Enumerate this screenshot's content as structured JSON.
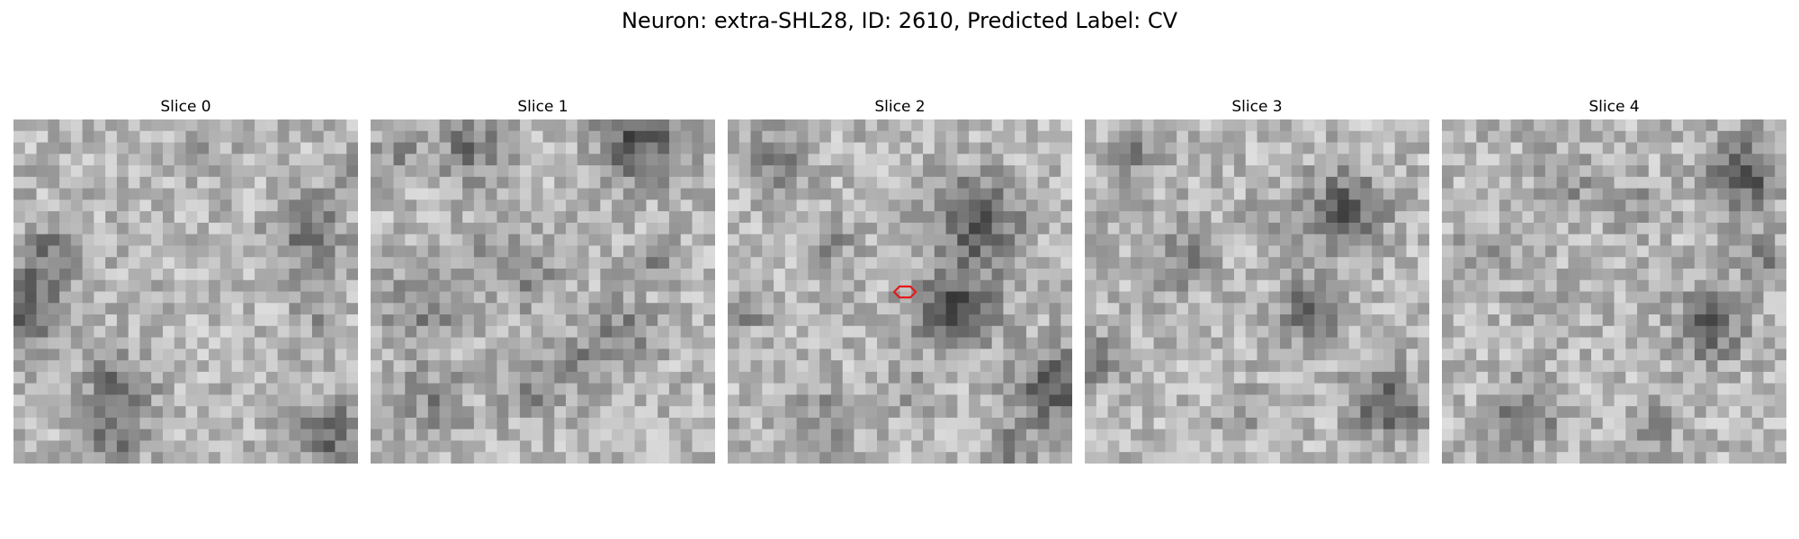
{
  "figure": {
    "title": "Neuron: extra-SHL28, ID: 2610, Predicted Label: CV"
  },
  "panels": [
    {
      "title": "Slice 0",
      "seed": 11,
      "blobs": [
        [
          0.03,
          0.55,
          0.09,
          0.35
        ],
        [
          0.12,
          0.38,
          0.06,
          0.22
        ],
        [
          0.85,
          0.32,
          0.07,
          0.3
        ],
        [
          0.3,
          0.78,
          0.07,
          0.28
        ],
        [
          0.28,
          0.93,
          0.06,
          0.25
        ],
        [
          0.93,
          0.92,
          0.07,
          0.3
        ],
        [
          0.99,
          0.15,
          0.03,
          0.3
        ],
        [
          0.88,
          0.55,
          0.05,
          0.14
        ],
        [
          0.55,
          0.1,
          0.06,
          0.08
        ]
      ]
    },
    {
      "title": "Slice 1",
      "seed": 23,
      "blobs": [
        [
          0.78,
          0.06,
          0.08,
          0.4
        ],
        [
          0.29,
          0.08,
          0.07,
          0.25
        ],
        [
          0.14,
          0.55,
          0.08,
          0.2
        ],
        [
          0.45,
          0.45,
          0.06,
          0.2
        ],
        [
          0.72,
          0.62,
          0.07,
          0.2
        ],
        [
          0.58,
          0.72,
          0.06,
          0.18
        ],
        [
          0.45,
          0.78,
          0.05,
          0.22
        ],
        [
          0.18,
          0.82,
          0.07,
          0.18
        ],
        [
          0.82,
          0.4,
          0.04,
          0.18
        ],
        [
          0.08,
          0.1,
          0.05,
          0.15
        ],
        [
          0.35,
          0.35,
          0.05,
          0.12
        ]
      ]
    },
    {
      "title": "Slice 2",
      "seed": 37,
      "blobs": [
        [
          0.72,
          0.3,
          0.09,
          0.35
        ],
        [
          0.66,
          0.55,
          0.08,
          0.4
        ],
        [
          0.95,
          0.78,
          0.08,
          0.38
        ],
        [
          0.05,
          0.55,
          0.04,
          0.25
        ],
        [
          0.3,
          0.35,
          0.05,
          0.18
        ],
        [
          0.15,
          0.12,
          0.06,
          0.2
        ],
        [
          0.28,
          0.88,
          0.06,
          0.18
        ],
        [
          0.82,
          0.95,
          0.05,
          0.2
        ],
        [
          0.52,
          0.78,
          0.05,
          0.12
        ]
      ]
    },
    {
      "title": "Slice 3",
      "seed": 51,
      "blobs": [
        [
          0.75,
          0.27,
          0.08,
          0.35
        ],
        [
          0.66,
          0.55,
          0.06,
          0.35
        ],
        [
          0.88,
          0.82,
          0.07,
          0.35
        ],
        [
          0.03,
          0.7,
          0.05,
          0.3
        ],
        [
          0.28,
          0.4,
          0.07,
          0.18
        ],
        [
          0.15,
          0.1,
          0.05,
          0.18
        ],
        [
          0.08,
          0.25,
          0.04,
          0.14
        ],
        [
          0.55,
          0.3,
          0.05,
          0.12
        ],
        [
          0.45,
          0.85,
          0.05,
          0.1
        ]
      ]
    },
    {
      "title": "Slice 4",
      "seed": 67,
      "blobs": [
        [
          0.88,
          0.16,
          0.07,
          0.4
        ],
        [
          0.78,
          0.6,
          0.07,
          0.32
        ],
        [
          0.93,
          0.42,
          0.05,
          0.2
        ],
        [
          0.25,
          0.85,
          0.06,
          0.32
        ],
        [
          0.35,
          0.18,
          0.06,
          0.18
        ],
        [
          0.12,
          0.38,
          0.05,
          0.15
        ],
        [
          0.55,
          0.25,
          0.05,
          0.14
        ],
        [
          0.3,
          0.55,
          0.05,
          0.12
        ],
        [
          0.62,
          0.88,
          0.05,
          0.15
        ]
      ]
    }
  ],
  "marker": {
    "panel_index": 2,
    "color": "#e41a1c",
    "shape": "hexagon-outline"
  }
}
